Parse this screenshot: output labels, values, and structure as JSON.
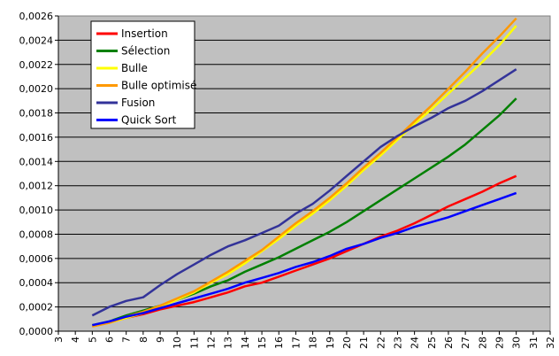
{
  "chart_data": {
    "type": "line",
    "title": "",
    "xlabel": "",
    "ylabel": "",
    "xlim": [
      3,
      32
    ],
    "ylim": [
      0,
      0.0026
    ],
    "grid": true,
    "legend_position": "top-left",
    "background": "#c0c0c0",
    "x_ticks": [
      "3",
      "4",
      "5",
      "6",
      "7",
      "8",
      "9",
      "10",
      "11",
      "12",
      "13",
      "14",
      "15",
      "16",
      "17",
      "18",
      "19",
      "20",
      "21",
      "22",
      "23",
      "24",
      "25",
      "26",
      "27",
      "28",
      "29",
      "30",
      "31",
      "32"
    ],
    "y_ticks": [
      "0,0000",
      "0,0002",
      "0,0004",
      "0,0006",
      "0,0008",
      "0,0010",
      "0,0012",
      "0,0014",
      "0,0016",
      "0,0018",
      "0,0020",
      "0,0022",
      "0,0024",
      "0,0026"
    ],
    "x": [
      5,
      6,
      7,
      8,
      9,
      10,
      11,
      12,
      13,
      14,
      15,
      16,
      17,
      18,
      19,
      20,
      21,
      22,
      23,
      24,
      25,
      26,
      27,
      28,
      29,
      30
    ],
    "series": [
      {
        "name": "Insertion",
        "color": "#ff0000",
        "values": [
          4e-05,
          7e-05,
          0.00011,
          0.00014,
          0.00018,
          0.00021,
          0.00024,
          0.00028,
          0.00032,
          0.00037,
          0.0004,
          0.00045,
          0.0005,
          0.00055,
          0.0006,
          0.00066,
          0.00072,
          0.00078,
          0.00083,
          0.00089,
          0.00096,
          0.00103,
          0.00109,
          0.00115,
          0.00122,
          0.00128
        ]
      },
      {
        "name": "Sélection",
        "color": "#008000",
        "values": [
          5e-05,
          8e-05,
          0.00013,
          0.00017,
          0.00021,
          0.00026,
          0.00031,
          0.00037,
          0.00042,
          0.00049,
          0.00055,
          0.00061,
          0.00068,
          0.00075,
          0.00082,
          0.0009,
          0.00099,
          0.00108,
          0.00117,
          0.00126,
          0.00135,
          0.00144,
          0.00154,
          0.00166,
          0.00178,
          0.00192
        ]
      },
      {
        "name": "Bulle",
        "color": "#ffff00",
        "values": [
          4e-05,
          7e-05,
          0.00011,
          0.00015,
          0.0002,
          0.00026,
          0.00032,
          0.0004,
          0.00047,
          0.00056,
          0.00066,
          0.00076,
          0.00087,
          0.00097,
          0.00108,
          0.0012,
          0.00133,
          0.00145,
          0.00158,
          0.00171,
          0.00183,
          0.00196,
          0.00209,
          0.00222,
          0.00236,
          0.00252
        ]
      },
      {
        "name": "Bulle optimisé",
        "color": "#ff9900",
        "values": [
          4e-05,
          7e-05,
          0.00012,
          0.00016,
          0.00021,
          0.00027,
          0.00033,
          0.00041,
          0.00049,
          0.00058,
          0.00067,
          0.00078,
          0.00089,
          0.00099,
          0.0011,
          0.00122,
          0.00135,
          0.00147,
          0.0016,
          0.00173,
          0.00186,
          0.002,
          0.00214,
          0.00229,
          0.00243,
          0.00258
        ]
      },
      {
        "name": "Fusion",
        "color": "#333399",
        "values": [
          0.00013,
          0.0002,
          0.00025,
          0.00028,
          0.00038,
          0.00047,
          0.00055,
          0.00063,
          0.0007,
          0.00075,
          0.00081,
          0.00087,
          0.00097,
          0.00105,
          0.00116,
          0.00128,
          0.0014,
          0.00152,
          0.00161,
          0.00169,
          0.00176,
          0.00184,
          0.0019,
          0.00198,
          0.00207,
          0.00216
        ]
      },
      {
        "name": "Quick Sort",
        "color": "#0000ff",
        "values": [
          5e-05,
          8e-05,
          0.00012,
          0.00015,
          0.00019,
          0.00023,
          0.00027,
          0.00031,
          0.00035,
          0.0004,
          0.00044,
          0.00048,
          0.00053,
          0.00057,
          0.00062,
          0.00068,
          0.00072,
          0.00077,
          0.00081,
          0.00086,
          0.0009,
          0.00094,
          0.00099,
          0.00104,
          0.00109,
          0.00114
        ]
      }
    ]
  }
}
